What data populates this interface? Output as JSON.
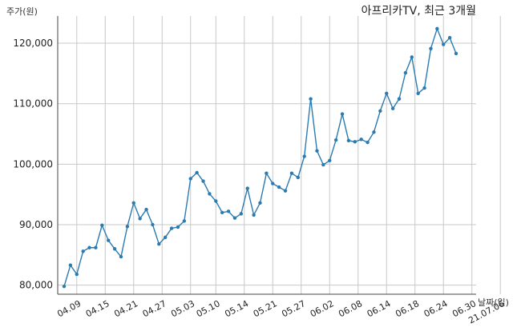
{
  "chart_data": {
    "type": "line",
    "title": "아프리카TV, 최근 3개월",
    "ylabel": "주가(원)",
    "xlabel": "날짜(일)",
    "ylim": [
      78500,
      124500
    ],
    "grid": true,
    "colors": {
      "line": "#2b7bb0",
      "marker": "#2b7bb0",
      "grid": "#c8c8c8"
    },
    "y_ticks": [
      80000,
      90000,
      100000,
      110000,
      120000
    ],
    "y_tick_labels": [
      "80,000",
      "90,000",
      "100,000",
      "110,000",
      "120,000"
    ],
    "x_ticks": [
      2,
      6.5,
      11,
      15.5,
      20,
      24,
      28.5,
      33,
      37.5,
      42,
      46.5,
      51,
      55.5,
      60,
      64.5,
      69
    ],
    "x_tick_labels": [
      "04.09",
      "04.15",
      "04.21",
      "04.27",
      "05.03",
      "05.10",
      "05.14",
      "05.21",
      "05.27",
      "06.02",
      "06.08",
      "06.14",
      "06.18",
      "06.24",
      "06.30",
      "21.07.06"
    ],
    "series": [
      {
        "values": [
          79800,
          83300,
          81800,
          85600,
          86200,
          86200,
          89900,
          87400,
          86000,
          84700,
          89700,
          93600,
          91000,
          92500,
          90000,
          86800,
          87900,
          89400,
          89600,
          90600,
          97600,
          98600,
          97200,
          95100,
          93900,
          92000,
          92200,
          91100,
          91800,
          96000,
          91600,
          93600,
          98500,
          96800,
          96200,
          95600,
          98500,
          97800,
          101300,
          110800,
          102200,
          99900,
          100600,
          104000,
          108300,
          103900,
          103700,
          104100,
          103600,
          105300,
          108800,
          111700,
          109200,
          110800,
          115100,
          117700,
          111700,
          112600,
          119100,
          122400,
          119800,
          120900,
          118300
        ]
      }
    ]
  }
}
